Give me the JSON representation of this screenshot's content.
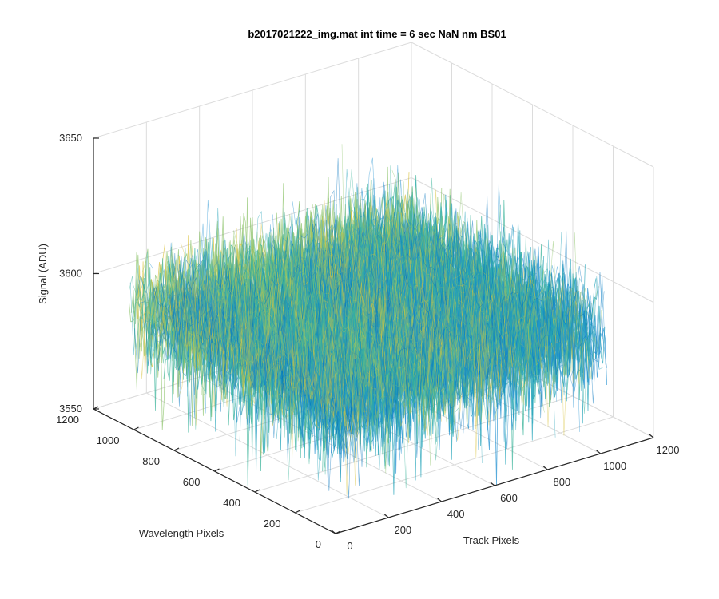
{
  "chart_data": {
    "type": "surface",
    "title": "b2017021222_img.mat int time = 6 sec  NaN nm BS01",
    "xlabel": "Track Pixels",
    "ylabel": "Wavelength Pixels",
    "zlabel": "Signal (ADU)",
    "xlim": [
      0,
      1200
    ],
    "ylim": [
      0,
      1200
    ],
    "zlim": [
      3550,
      3650
    ],
    "x_ticks": [
      0,
      200,
      400,
      600,
      800,
      1000,
      1200
    ],
    "y_ticks": [
      0,
      200,
      400,
      600,
      800,
      1000,
      1200
    ],
    "z_ticks": [
      3550,
      3600,
      3650
    ],
    "x_tick_labels": [
      "0",
      "200",
      "400",
      "600",
      "800",
      "1000",
      "1200"
    ],
    "y_tick_labels": [
      "0",
      "200",
      "400",
      "600",
      "800",
      "1000",
      "1200"
    ],
    "z_tick_labels": [
      "3550",
      "3600",
      "3650"
    ],
    "data_extent": {
      "x": [
        0,
        1024
      ],
      "y": [
        0,
        1024
      ]
    },
    "signal_mean": 3594,
    "signal_spread": 22,
    "colormap": [
      "#0072BD",
      "#1f8fd0",
      "#22a3b8",
      "#3cb49b",
      "#8fc46d",
      "#d9c23e"
    ],
    "grid": true
  }
}
